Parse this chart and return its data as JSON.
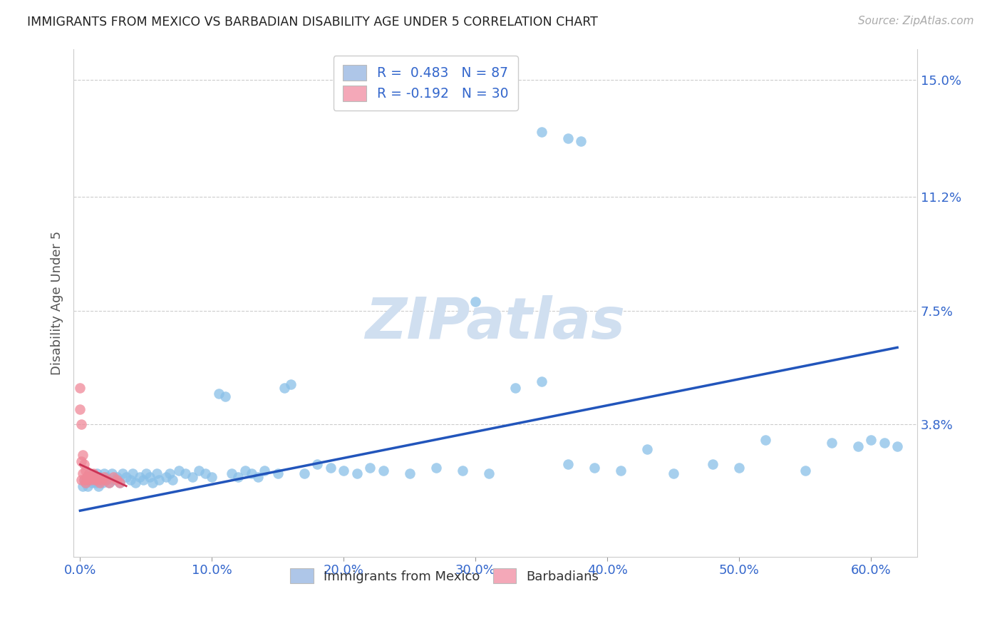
{
  "title": "IMMIGRANTS FROM MEXICO VS BARBADIAN DISABILITY AGE UNDER 5 CORRELATION CHART",
  "source": "Source: ZipAtlas.com",
  "ylabel": "Disability Age Under 5",
  "xlabel_ticks": [
    "0.0%",
    "10.0%",
    "20.0%",
    "30.0%",
    "40.0%",
    "50.0%",
    "60.0%"
  ],
  "xlabel_vals": [
    0.0,
    0.1,
    0.2,
    0.3,
    0.4,
    0.5,
    0.6
  ],
  "ytick_labels": [
    "3.8%",
    "7.5%",
    "11.2%",
    "15.0%"
  ],
  "ytick_vals": [
    0.038,
    0.075,
    0.112,
    0.15
  ],
  "xlim": [
    -0.005,
    0.635
  ],
  "ylim": [
    -0.005,
    0.16
  ],
  "legend_blue_label": "R =  0.483   N = 87",
  "legend_pink_label": "R = -0.192   N = 30",
  "legend_blue_color": "#aec6e8",
  "legend_pink_color": "#f4a8b8",
  "scatter_blue_color": "#89c0e8",
  "scatter_pink_color": "#f08898",
  "trendline_blue_color": "#2255bb",
  "trendline_pink_color": "#cc3355",
  "watermark_color": "#d0dff0",
  "background_color": "#ffffff",
  "grid_color": "#cccccc",
  "legend_entries": [
    "Immigrants from Mexico",
    "Barbadians"
  ],
  "blue_x": [
    0.002,
    0.003,
    0.004,
    0.005,
    0.006,
    0.007,
    0.008,
    0.009,
    0.01,
    0.011,
    0.012,
    0.013,
    0.014,
    0.015,
    0.016,
    0.017,
    0.018,
    0.019,
    0.02,
    0.022,
    0.024,
    0.026,
    0.028,
    0.03,
    0.032,
    0.035,
    0.038,
    0.04,
    0.042,
    0.045,
    0.048,
    0.05,
    0.053,
    0.055,
    0.058,
    0.06,
    0.065,
    0.068,
    0.07,
    0.075,
    0.08,
    0.085,
    0.09,
    0.095,
    0.1,
    0.105,
    0.11,
    0.115,
    0.12,
    0.125,
    0.13,
    0.135,
    0.14,
    0.15,
    0.155,
    0.16,
    0.17,
    0.18,
    0.19,
    0.2,
    0.21,
    0.22,
    0.23,
    0.25,
    0.27,
    0.29,
    0.31,
    0.33,
    0.35,
    0.37,
    0.39,
    0.41,
    0.43,
    0.45,
    0.48,
    0.5,
    0.52,
    0.55,
    0.57,
    0.59,
    0.6,
    0.61,
    0.62,
    0.35,
    0.37,
    0.38,
    0.3
  ],
  "blue_y": [
    0.018,
    0.02,
    0.019,
    0.021,
    0.018,
    0.022,
    0.02,
    0.019,
    0.021,
    0.02,
    0.019,
    0.022,
    0.018,
    0.021,
    0.02,
    0.019,
    0.022,
    0.02,
    0.021,
    0.019,
    0.022,
    0.02,
    0.021,
    0.019,
    0.022,
    0.021,
    0.02,
    0.022,
    0.019,
    0.021,
    0.02,
    0.022,
    0.021,
    0.019,
    0.022,
    0.02,
    0.021,
    0.022,
    0.02,
    0.023,
    0.022,
    0.021,
    0.023,
    0.022,
    0.021,
    0.048,
    0.047,
    0.022,
    0.021,
    0.023,
    0.022,
    0.021,
    0.023,
    0.022,
    0.05,
    0.051,
    0.022,
    0.025,
    0.024,
    0.023,
    0.022,
    0.024,
    0.023,
    0.022,
    0.024,
    0.023,
    0.022,
    0.05,
    0.052,
    0.025,
    0.024,
    0.023,
    0.03,
    0.022,
    0.025,
    0.024,
    0.033,
    0.023,
    0.032,
    0.031,
    0.033,
    0.032,
    0.031,
    0.133,
    0.131,
    0.13,
    0.078
  ],
  "pink_x": [
    0.0,
    0.0,
    0.001,
    0.001,
    0.001,
    0.002,
    0.002,
    0.003,
    0.003,
    0.004,
    0.004,
    0.005,
    0.005,
    0.006,
    0.007,
    0.008,
    0.009,
    0.01,
    0.011,
    0.012,
    0.013,
    0.014,
    0.015,
    0.016,
    0.018,
    0.02,
    0.022,
    0.025,
    0.028,
    0.03
  ],
  "pink_y": [
    0.05,
    0.043,
    0.038,
    0.026,
    0.02,
    0.028,
    0.022,
    0.025,
    0.02,
    0.023,
    0.019,
    0.021,
    0.02,
    0.021,
    0.022,
    0.02,
    0.021,
    0.022,
    0.02,
    0.021,
    0.02,
    0.021,
    0.019,
    0.02,
    0.021,
    0.02,
    0.019,
    0.021,
    0.02,
    0.019
  ]
}
